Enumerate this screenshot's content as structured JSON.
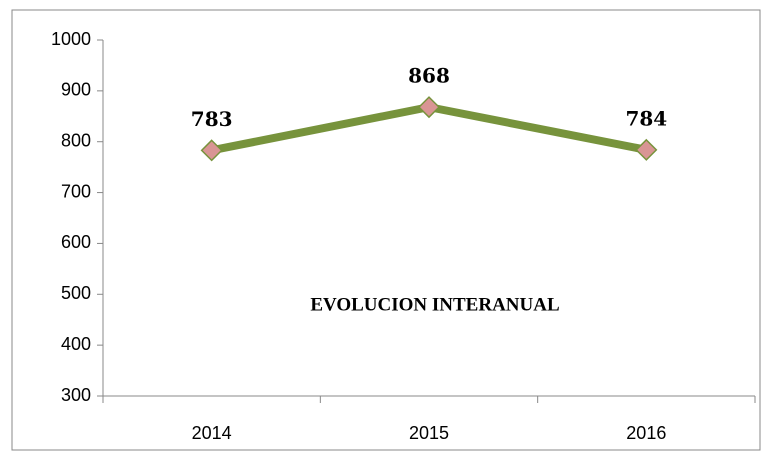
{
  "chart_data": {
    "type": "line",
    "title": "EVOLUCION INTERANUAL",
    "categories": [
      "2014",
      "2015",
      "2016"
    ],
    "values": [
      783,
      868,
      784
    ],
    "color": "#77933c",
    "marker_color": "#d99594",
    "ylim": [
      300,
      1000
    ],
    "yticks": [
      300,
      400,
      500,
      600,
      700,
      800,
      900,
      1000
    ]
  }
}
